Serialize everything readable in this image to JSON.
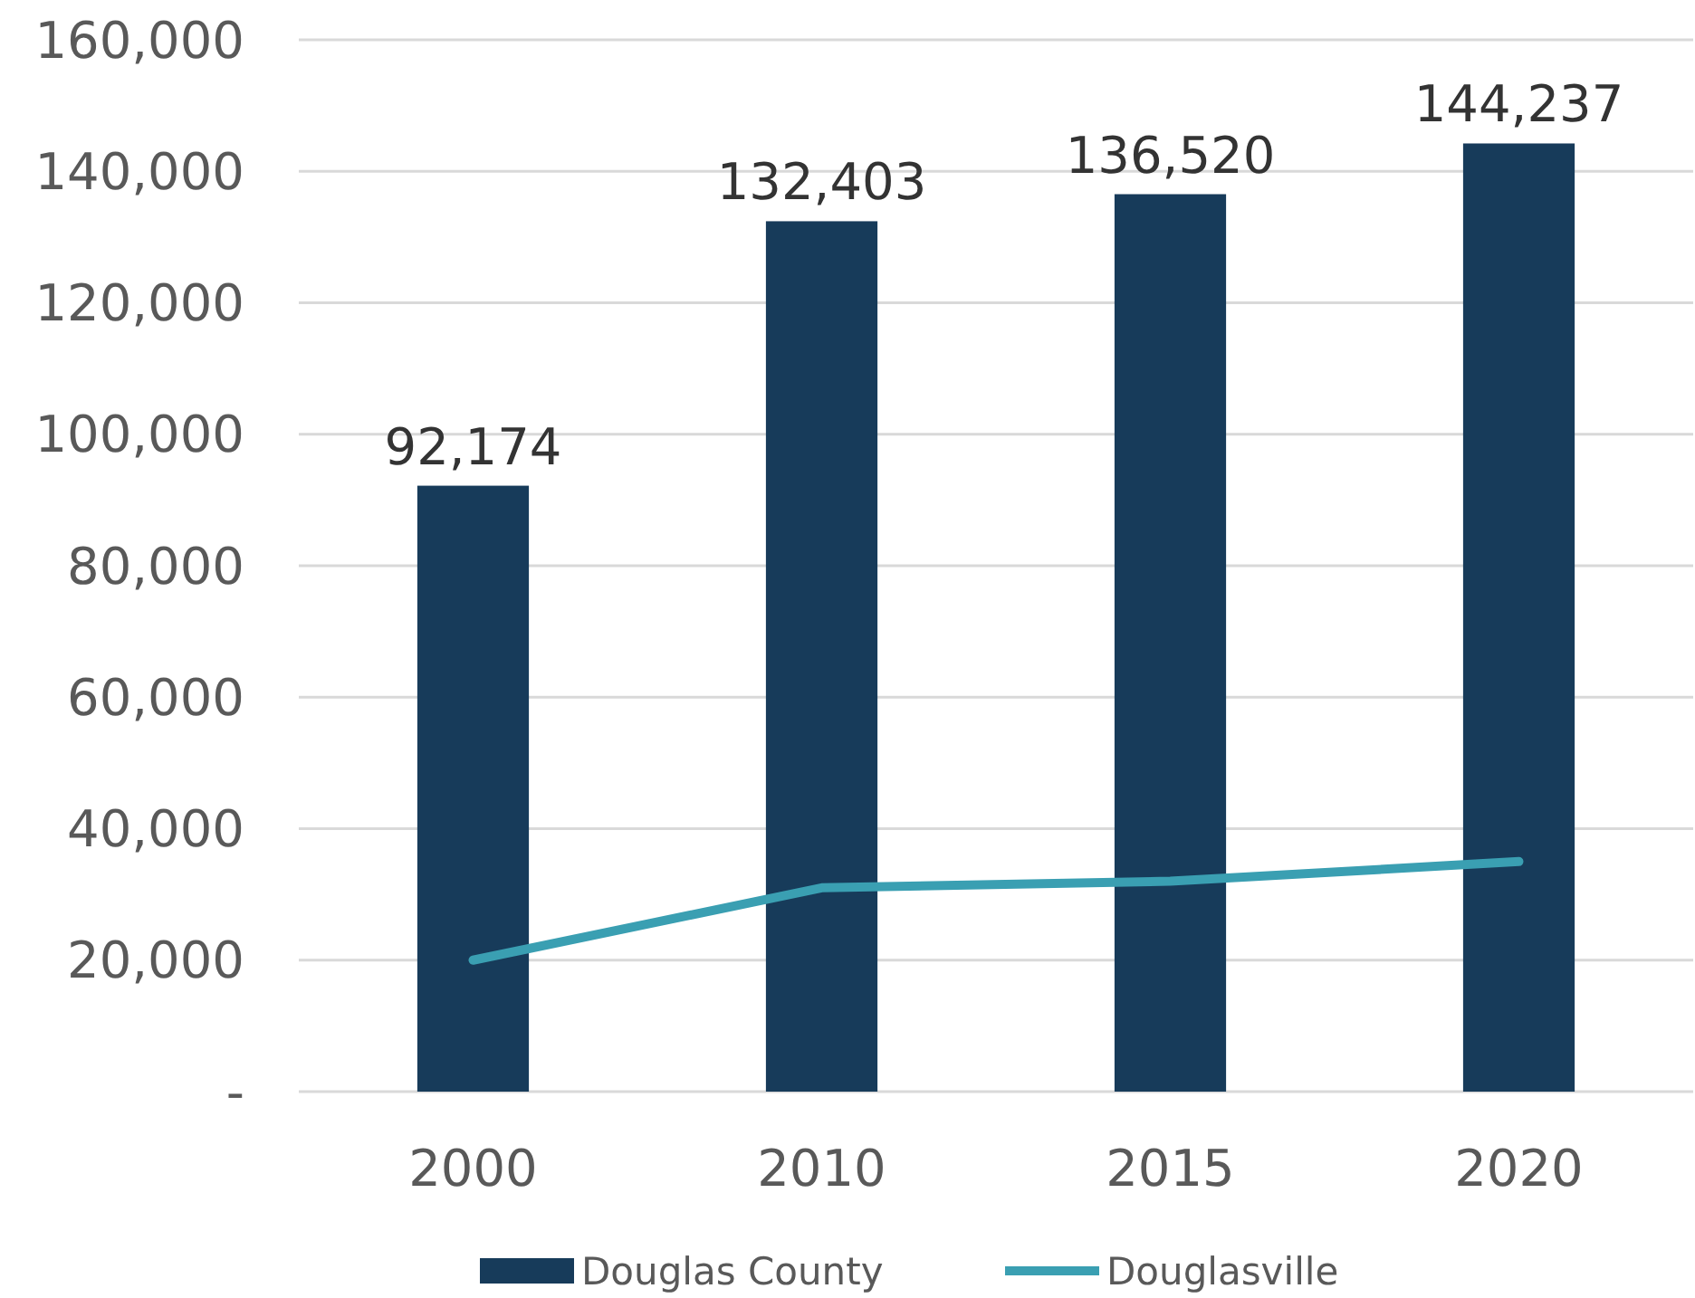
{
  "chart_data": {
    "type": "bar",
    "categories": [
      "2000",
      "2010",
      "2015",
      "2020"
    ],
    "series": [
      {
        "name": "Douglas County",
        "color": "#173b5a",
        "values": [
          92174,
          132403,
          136520,
          144237
        ],
        "value_labels": [
          "92,174",
          "132,403",
          "136,520",
          "144,237"
        ]
      },
      {
        "name": "Douglasville",
        "type": "line",
        "color": "#3a9fb2",
        "values": [
          20000,
          31000,
          32000,
          35000
        ]
      }
    ],
    "ylim": [
      0,
      160000
    ],
    "yticks": [
      {
        "value": 0,
        "label": "-"
      },
      {
        "value": 20000,
        "label": "20,000"
      },
      {
        "value": 40000,
        "label": "40,000"
      },
      {
        "value": 60000,
        "label": "60,000"
      },
      {
        "value": 80000,
        "label": "80,000"
      },
      {
        "value": 100000,
        "label": "100,000"
      },
      {
        "value": 120000,
        "label": "120,000"
      },
      {
        "value": 140000,
        "label": "140,000"
      },
      {
        "value": 160000,
        "label": "160,000"
      }
    ],
    "grid": "y",
    "legend": "bottom",
    "marker": "none"
  }
}
